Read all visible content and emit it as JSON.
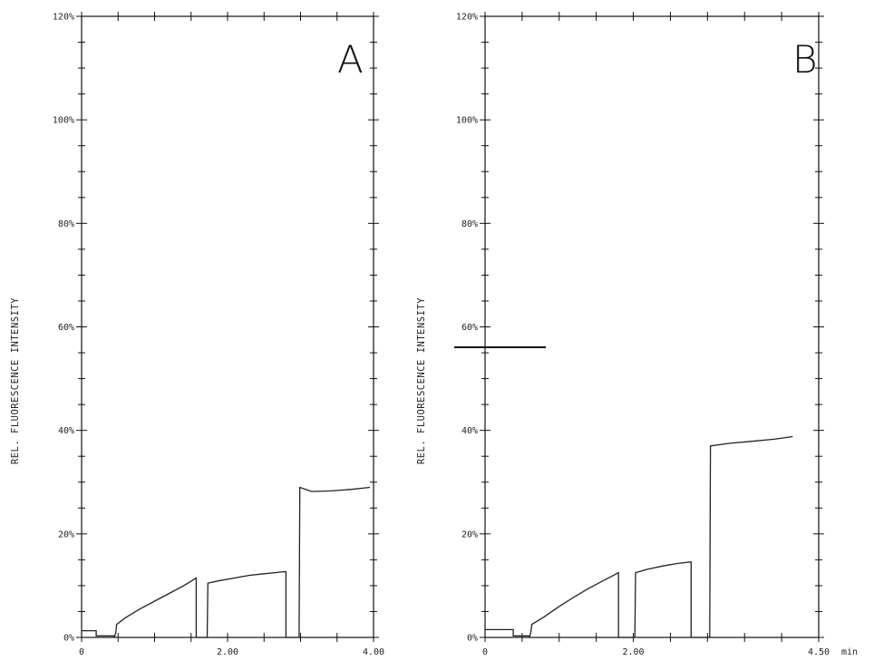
{
  "chart_data": [
    {
      "type": "line",
      "panel_label": "A",
      "ylabel": "REL. FLUORESCENCE INTENSITY",
      "xlabel": "",
      "yticks": [
        "0%",
        "20%",
        "40%",
        "60%",
        "80%",
        "100%",
        "120%"
      ],
      "xticks": [
        "0",
        "2.00",
        "4.00"
      ],
      "xlim": [
        0,
        4.0
      ],
      "ylim": [
        0,
        120
      ],
      "grid": false,
      "series": [
        {
          "values": [
            [
              0,
              1.3
            ],
            [
              0.2,
              1.3
            ],
            [
              0.2,
              0.3
            ],
            [
              0.45,
              0.3
            ],
            [
              0.45,
              0
            ],
            [
              0.45,
              0
            ],
            [
              0.47,
              1
            ],
            [
              0.48,
              2.5
            ],
            [
              0.6,
              3.8
            ],
            [
              0.8,
              5.5
            ],
            [
              1.0,
              7
            ],
            [
              1.2,
              8.5
            ],
            [
              1.4,
              10
            ],
            [
              1.57,
              11.5
            ],
            [
              1.57,
              0
            ],
            [
              1.72,
              0
            ],
            [
              1.73,
              10.5
            ],
            [
              1.9,
              11
            ],
            [
              2.1,
              11.5
            ],
            [
              2.3,
              12
            ],
            [
              2.5,
              12.3
            ],
            [
              2.7,
              12.6
            ],
            [
              2.8,
              12.7
            ],
            [
              2.8,
              0
            ],
            [
              2.98,
              0
            ],
            [
              2.99,
              29
            ],
            [
              3.15,
              28.2
            ],
            [
              3.4,
              28.3
            ],
            [
              3.7,
              28.6
            ],
            [
              3.95,
              29
            ]
          ]
        }
      ]
    },
    {
      "type": "line",
      "panel_label": "B",
      "ylabel": "REL. FLUORESCENCE INTENSITY",
      "xlabel": "min",
      "yticks": [
        "0%",
        "20%",
        "40%",
        "60%",
        "80%",
        "100%",
        "120%"
      ],
      "xticks": [
        "0",
        "2.00",
        "4.50"
      ],
      "xlim": [
        0,
        4.5
      ],
      "ylim": [
        0,
        120
      ],
      "grid": false,
      "series": [
        {
          "values": [
            [
              0,
              1.5
            ],
            [
              0.38,
              1.5
            ],
            [
              0.38,
              0.3
            ],
            [
              0.6,
              0.3
            ],
            [
              0.6,
              0
            ],
            [
              0.6,
              0
            ],
            [
              0.62,
              1.2
            ],
            [
              0.63,
              2.5
            ],
            [
              0.8,
              4
            ],
            [
              1.0,
              6
            ],
            [
              1.2,
              7.8
            ],
            [
              1.4,
              9.5
            ],
            [
              1.6,
              11
            ],
            [
              1.8,
              12.5
            ],
            [
              1.8,
              0
            ],
            [
              2.02,
              0
            ],
            [
              2.03,
              12.5
            ],
            [
              2.2,
              13.2
            ],
            [
              2.4,
              13.8
            ],
            [
              2.6,
              14.3
            ],
            [
              2.78,
              14.6
            ],
            [
              2.78,
              0
            ],
            [
              3.03,
              0
            ],
            [
              3.04,
              37
            ],
            [
              3.3,
              37.5
            ],
            [
              3.6,
              37.9
            ],
            [
              3.9,
              38.3
            ],
            [
              4.15,
              38.8
            ]
          ]
        }
      ]
    }
  ]
}
